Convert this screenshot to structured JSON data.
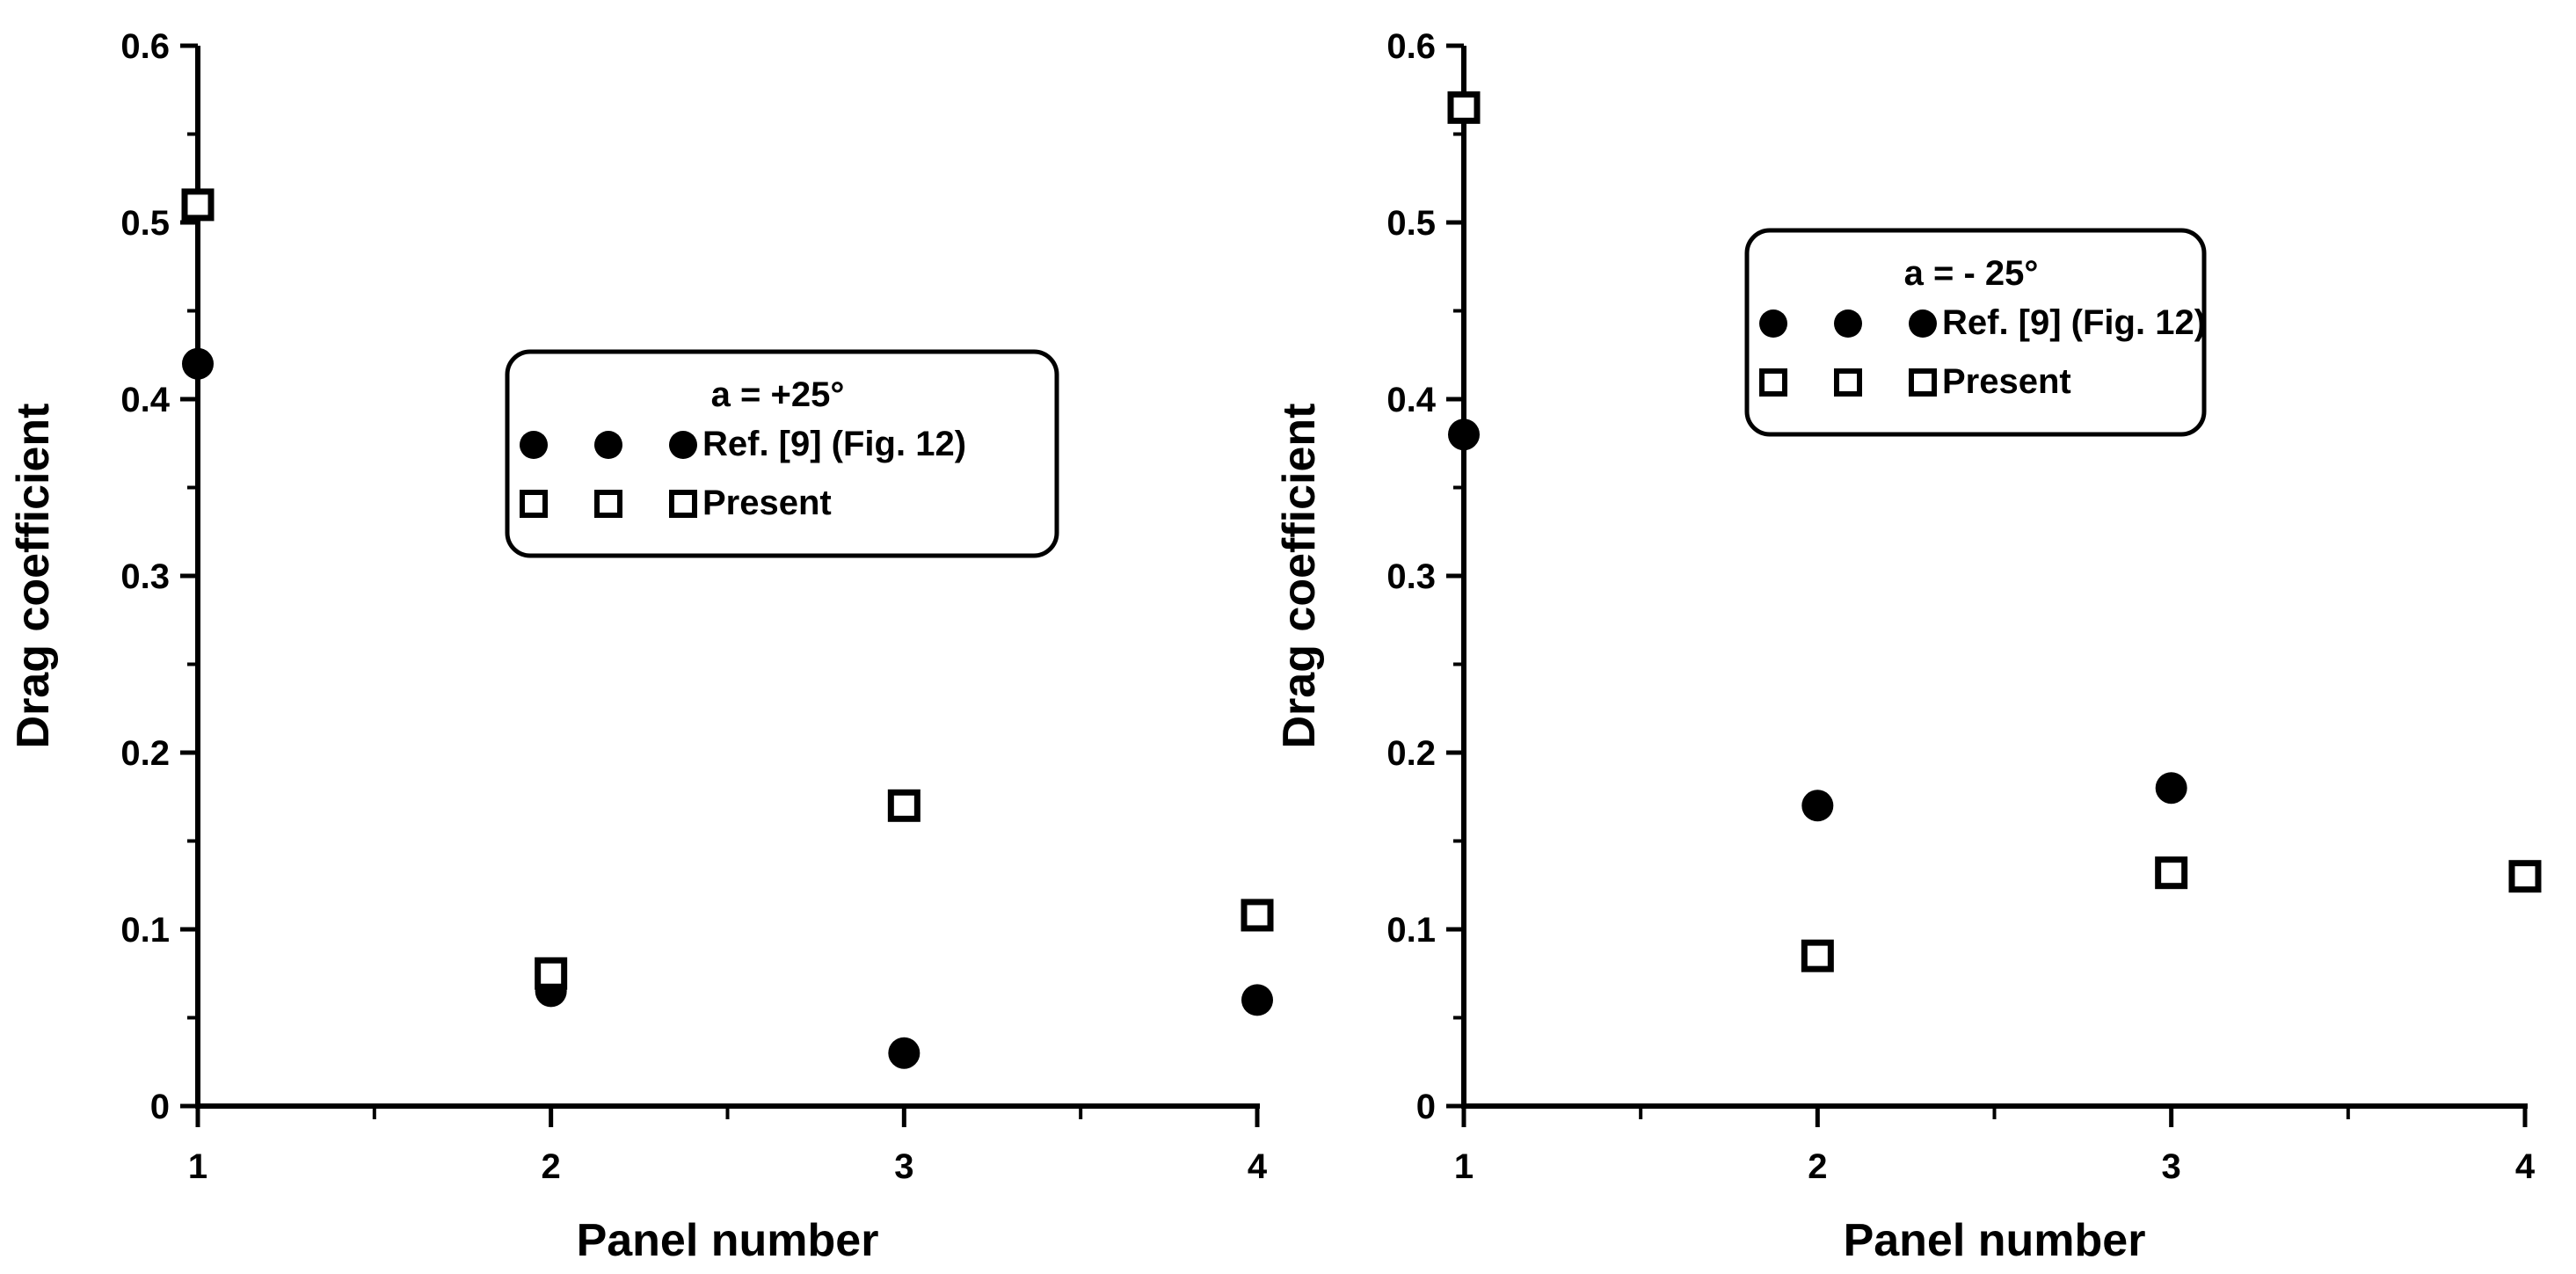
{
  "chart_data": [
    {
      "type": "scatter",
      "xlabel": "Panel number",
      "ylabel": "Drag coefficient",
      "xlim": [
        1,
        4
      ],
      "ylim": [
        0,
        0.6
      ],
      "xticks": [
        "1",
        "2",
        "3",
        "4"
      ],
      "yticks": [
        "0",
        "0.1",
        "0.2",
        "0.3",
        "0.4",
        "0.5",
        "0.6"
      ],
      "legend": {
        "title": "a = +25°",
        "placement": "center",
        "entries": [
          "Ref. [9] (Fig. 12)",
          "Present"
        ]
      },
      "series": [
        {
          "name": "Ref. [9] (Fig. 12)",
          "marker": "filled-circle",
          "x": [
            1,
            2,
            3,
            4
          ],
          "y": [
            0.42,
            0.065,
            0.03,
            0.06
          ]
        },
        {
          "name": "Present",
          "marker": "open-square",
          "x": [
            1,
            2,
            3,
            4
          ],
          "y": [
            0.51,
            0.075,
            0.17,
            0.108
          ]
        }
      ]
    },
    {
      "type": "scatter",
      "xlabel": "Panel number",
      "ylabel": "Drag coefficient",
      "xlim": [
        1,
        4
      ],
      "ylim": [
        0,
        0.6
      ],
      "xticks": [
        "1",
        "2",
        "3",
        "4"
      ],
      "yticks": [
        "0",
        "0.1",
        "0.2",
        "0.3",
        "0.4",
        "0.5",
        "0.6"
      ],
      "legend": {
        "title": "a = - 25°",
        "placement": "top-center",
        "entries": [
          "Ref. [9] (Fig. 12)",
          "Present"
        ]
      },
      "series": [
        {
          "name": "Ref. [9] (Fig. 12)",
          "marker": "filled-circle",
          "x": [
            1,
            2,
            3,
            4
          ],
          "y": [
            0.38,
            0.17,
            0.18,
            0.13
          ]
        },
        {
          "name": "Present",
          "marker": "open-square",
          "x": [
            1,
            2,
            3,
            4
          ],
          "y": [
            0.565,
            0.085,
            0.132,
            0.13
          ]
        }
      ]
    }
  ]
}
